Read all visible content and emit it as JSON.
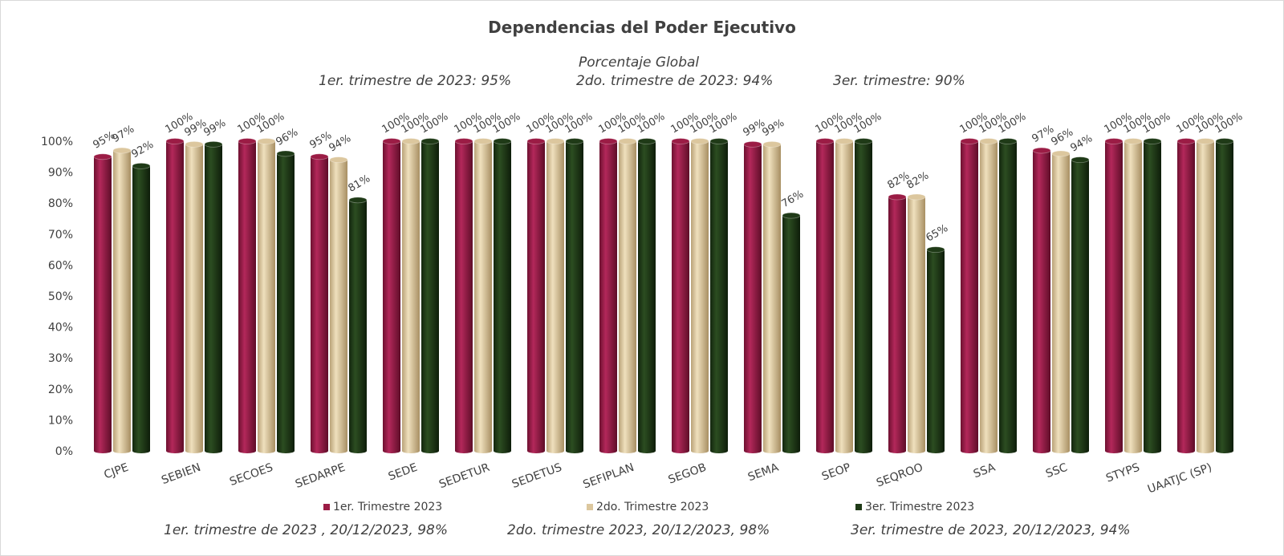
{
  "chart_data": {
    "type": "bar",
    "title": "Dependencias del Poder Ejecutivo",
    "subtitle_lines": [
      "Porcentaje Global",
      "1er. trimestre de 2023: 95%",
      "2do. trimestre de 2023: 94%",
      "3er. trimestre: 90%"
    ],
    "categories": [
      "CJPE",
      "SEBIEN",
      "SECOES",
      "SEDARPE",
      "SEDE",
      "SEDETUR",
      "SEDETUS",
      "SEFIPLAN",
      "SEGOB",
      "SEMA",
      "SEOP",
      "SEQROO",
      "SSA",
      "SSC",
      "STYPS",
      "UAATJC (SP)"
    ],
    "series": [
      {
        "name": "1er. Trimestre 2023",
        "color": "#9b1c45",
        "values": [
          95,
          100,
          100,
          95,
          100,
          100,
          100,
          100,
          100,
          99,
          100,
          82,
          100,
          97,
          100,
          100
        ]
      },
      {
        "name": "2do. Trimestre 2023",
        "color": "#dcc79e",
        "values": [
          97,
          99,
          100,
          94,
          100,
          100,
          100,
          100,
          100,
          99,
          100,
          82,
          100,
          96,
          100,
          100
        ]
      },
      {
        "name": "3er. Trimestre 2023",
        "color": "#1f3a17",
        "values": [
          92,
          99,
          96,
          81,
          100,
          100,
          100,
          100,
          100,
          76,
          100,
          65,
          100,
          94,
          100,
          100
        ]
      }
    ],
    "y_ticks": [
      "0%",
      "10%",
      "20%",
      "30%",
      "40%",
      "50%",
      "60%",
      "70%",
      "80%",
      "90%",
      "100%"
    ],
    "ylim": [
      0,
      100
    ],
    "grid": false,
    "legend_position": "bottom",
    "footnotes": [
      "1er. trimestre de 2023 , 20/12/2023, 98%",
      "2do. trimestre 2023, 20/12/2023, 98%",
      "3er. trimestre de 2023, 20/12/2023, 94%"
    ]
  }
}
